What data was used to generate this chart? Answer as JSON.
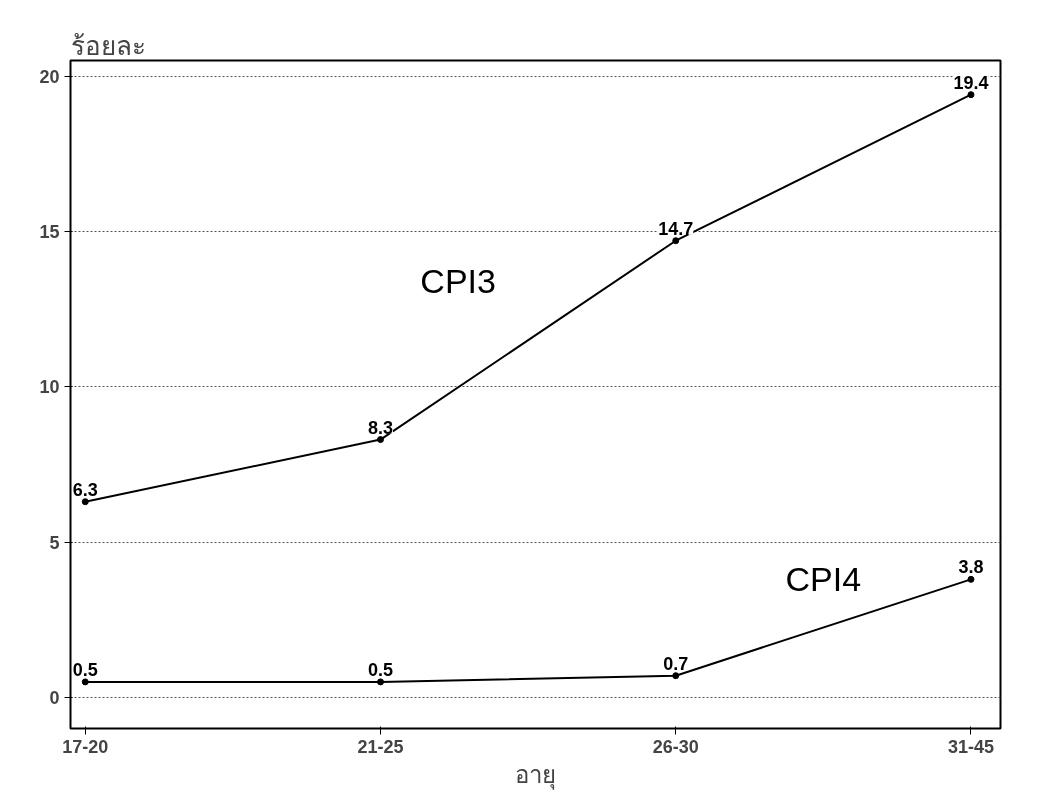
{
  "chart_data": {
    "type": "line",
    "xlabel": "อายุ",
    "ylabel": "ร้อยละ",
    "categories": [
      "17-20",
      "21-25",
      "26-30",
      "31-45"
    ],
    "series": [
      {
        "name": "CPI3",
        "color": "#000000",
        "values": [
          6.3,
          8.3,
          14.7,
          19.4
        ]
      },
      {
        "name": "CPI4",
        "color": "#000000",
        "values": [
          0.5,
          0.5,
          0.7,
          3.8
        ]
      }
    ],
    "ylim": [
      -1,
      20.5
    ],
    "yticks": [
      0,
      5,
      10,
      15,
      20
    ],
    "grid": "y",
    "marker": "circle",
    "line_style": "solid",
    "data_labels": true
  }
}
